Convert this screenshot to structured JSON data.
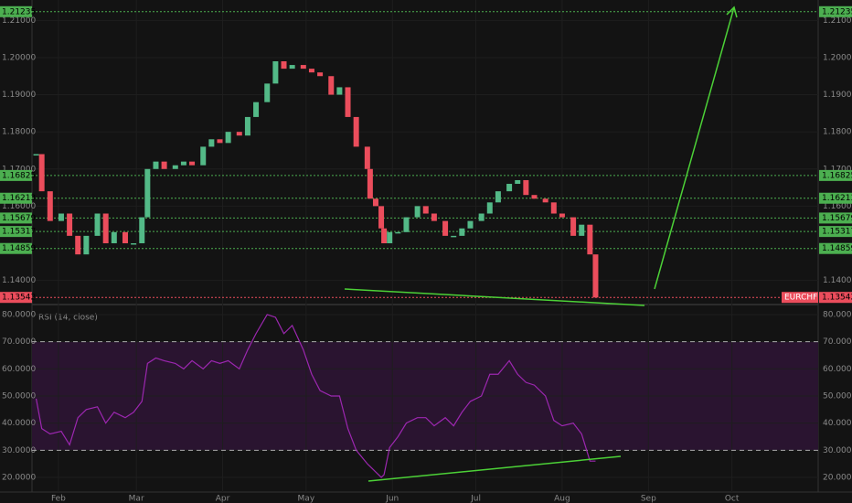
{
  "chart_data": [
    {
      "type": "candlestick",
      "x": [
        23,
        25,
        28,
        32,
        35,
        38,
        41,
        45,
        48,
        51,
        55,
        58,
        61,
        63,
        66,
        69,
        73,
        76,
        79,
        83,
        86,
        89,
        92,
        96,
        99,
        102,
        106,
        109,
        112,
        115,
        119,
        122,
        125,
        129,
        132,
        135,
        138,
        142,
        143,
        145,
        147,
        148,
        150,
        153,
        156,
        160,
        163,
        166,
        170,
        173,
        176,
        179,
        183,
        186,
        189,
        193,
        196,
        199,
        202,
        206,
        209,
        212,
        216,
        219,
        222,
        224
      ],
      "series": [
        {
          "name": "EURCHF",
          "up_color": "#53b987",
          "down_color": "#eb4d5c",
          "values": [
            1.174,
            1.164,
            1.156,
            1.158,
            1.152,
            1.147,
            1.152,
            1.158,
            1.15,
            1.153,
            1.15,
            1.15,
            1.157,
            1.17,
            1.172,
            1.17,
            1.171,
            1.172,
            1.171,
            1.176,
            1.178,
            1.177,
            1.18,
            1.179,
            1.184,
            1.188,
            1.193,
            1.199,
            1.197,
            1.198,
            1.197,
            1.196,
            1.195,
            1.19,
            1.192,
            1.184,
            1.176,
            1.17,
            1.162,
            1.16,
            1.154,
            1.15,
            1.153,
            1.153,
            1.157,
            1.16,
            1.158,
            1.156,
            1.152,
            1.152,
            1.154,
            1.156,
            1.158,
            1.161,
            1.164,
            1.166,
            1.167,
            1.163,
            1.162,
            1.161,
            1.158,
            1.157,
            1.152,
            1.155,
            1.147,
            1.1354
          ]
        }
      ],
      "xlim": [
        10,
        304
      ],
      "xticks": [
        {
          "value": 31,
          "label": "Feb"
        },
        {
          "value": 59,
          "label": "Mar"
        },
        {
          "value": 90,
          "label": "Apr"
        },
        {
          "value": 120,
          "label": "May"
        },
        {
          "value": 151,
          "label": "Jun"
        },
        {
          "value": 181,
          "label": "Jul"
        },
        {
          "value": 212,
          "label": "Aug"
        },
        {
          "value": 243,
          "label": "Sep"
        },
        {
          "value": 273,
          "label": "Oct"
        }
      ],
      "ylim": [
        1.1335,
        1.2155
      ],
      "yticks": [
        {
          "value": 1.14,
          "label": "1.14000"
        },
        {
          "value": 1.16,
          "label": "1.16000"
        },
        {
          "value": 1.17,
          "label": "1.17000"
        },
        {
          "value": 1.18,
          "label": "1.18000"
        },
        {
          "value": 1.19,
          "label": "1.19000"
        },
        {
          "value": 1.2,
          "label": "1.20000"
        },
        {
          "value": 1.21,
          "label": "1.21000"
        }
      ],
      "levels": [
        1.21235,
        1.16825,
        1.16213,
        1.15679,
        1.15317,
        1.14859
      ],
      "level_color": "#4caf50",
      "last_price": 1.13542,
      "last_color": "#eb4d5c",
      "grid": true
    },
    {
      "type": "line",
      "title": "RSI (14, close)",
      "series": [
        {
          "name": "RSI",
          "color": "#9c27b0",
          "values": [
            49,
            38,
            36,
            37,
            32,
            42,
            45,
            46,
            40,
            44,
            42,
            44,
            48,
            62,
            64,
            63,
            62,
            60,
            63,
            60,
            63,
            62,
            63,
            60,
            67,
            73,
            80,
            79,
            73,
            76,
            67,
            58,
            52,
            50,
            50,
            38,
            30,
            25,
            24,
            22,
            20,
            21,
            31,
            35,
            40,
            42,
            42,
            39,
            42,
            39,
            44,
            48,
            50,
            58,
            58,
            63,
            58,
            55,
            54,
            50,
            41,
            39,
            40,
            36,
            26,
            26
          ]
        }
      ],
      "ylim": [
        14.6,
        83.7
      ],
      "yticks": [
        {
          "value": 20,
          "label": "20.0000"
        },
        {
          "value": 30,
          "label": "30.0000"
        },
        {
          "value": 40,
          "label": "40.0000"
        },
        {
          "value": 50,
          "label": "50.0000"
        },
        {
          "value": 60,
          "label": "60.0000"
        },
        {
          "value": 70,
          "label": "70.0000"
        },
        {
          "value": 80,
          "label": "80.0000"
        }
      ],
      "levels": [
        70,
        30
      ],
      "grid": true
    }
  ]
}
